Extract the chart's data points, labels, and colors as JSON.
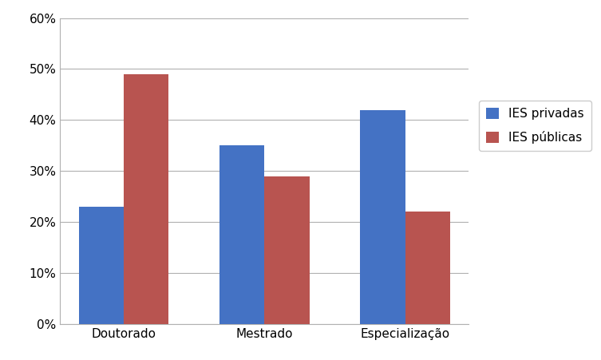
{
  "categories": [
    "Doutorado",
    "Mestrado",
    "Especialização"
  ],
  "series": {
    "IES privadas": [
      0.23,
      0.35,
      0.42
    ],
    "IES públicas": [
      0.49,
      0.29,
      0.22
    ]
  },
  "colors": {
    "IES privadas": "#4472C4",
    "IES públicas": "#B85450"
  },
  "ylim": [
    0,
    0.6
  ],
  "yticks": [
    0.0,
    0.1,
    0.2,
    0.3,
    0.4,
    0.5,
    0.6
  ],
  "bar_width": 0.32,
  "legend_labels": [
    "IES privadas",
    "IES públicas"
  ],
  "background_color": "#ffffff",
  "grid_color": "#b0b0b0",
  "font_size": 11
}
